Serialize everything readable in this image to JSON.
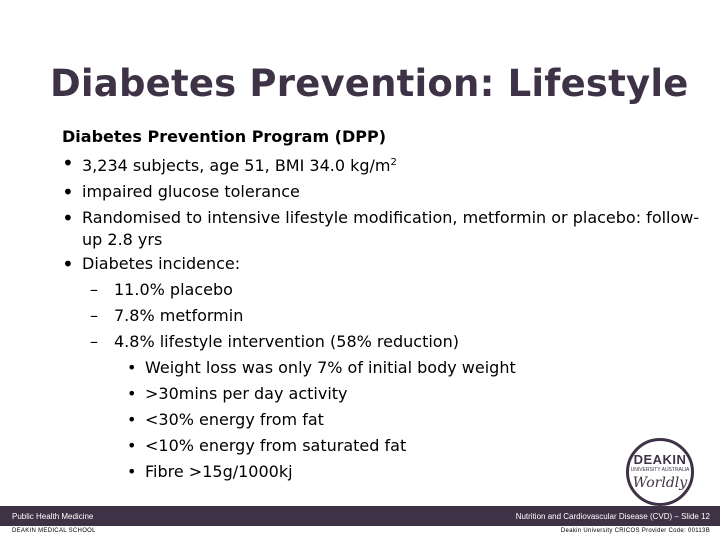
{
  "slide": {
    "title": "Diabetes Prevention: Lifestyle",
    "heading": "Diabetes Prevention Program (DPP)",
    "bullets": [
      "3,234 subjects, age 51, BMI 34.0 kg/m",
      "impaired glucose tolerance",
      "Randomised to intensive lifestyle modification, metformin or placebo: follow-up 2.8 yrs",
      "Diabetes incidence:"
    ],
    "bmi_superscript": "2",
    "incidence": [
      "11.0% placebo",
      "7.8% metformin",
      "4.8% lifestyle intervention (58% reduction)"
    ],
    "lifestyle_details": [
      "Weight loss was only 7% of initial body weight",
      ">30mins per day activity",
      "<30% energy from fat",
      "<10% energy from saturated fat",
      "Fibre >15g/1000kj"
    ]
  },
  "logo": {
    "name": "DEAKIN",
    "subtitle": "UNIVERSITY AUSTRALIA",
    "tagline": "Worldly"
  },
  "footer": {
    "left": "Public Health Medicine",
    "right": "Nutrition and Cardiovascular Disease (CVD) – Slide 12",
    "sub_left": "DEAKIN MEDICAL SCHOOL",
    "sub_right": "Deakin University CRICOS Provider Code: 00113B"
  },
  "colors": {
    "brand": "#3e3346"
  }
}
